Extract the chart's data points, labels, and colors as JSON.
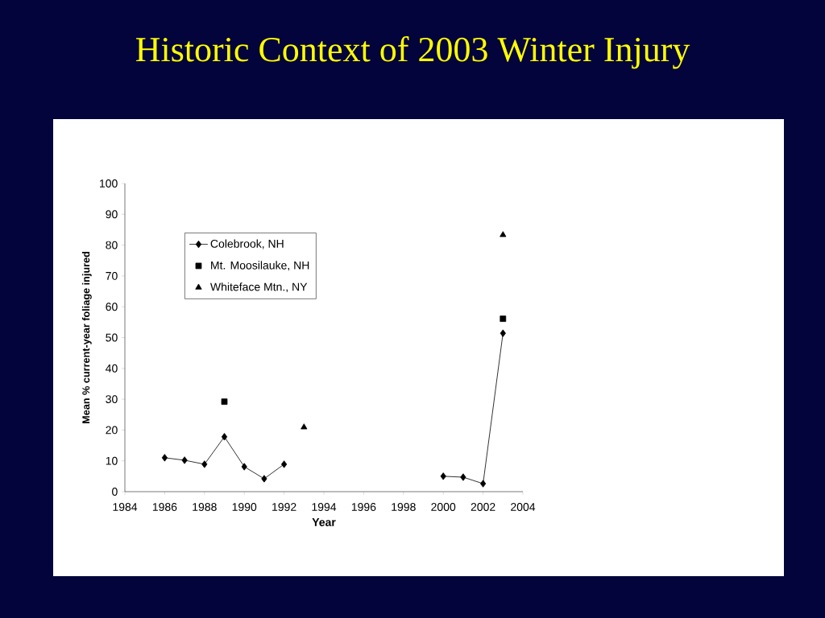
{
  "chart_data": {
    "type": "line",
    "title": "Historic Context of 2003 Winter Injury",
    "xlabel": "Year",
    "ylabel": "Mean % current-year foliage injured",
    "xlim": [
      1984,
      2004
    ],
    "xticks": [
      1984,
      1986,
      1988,
      1990,
      1992,
      1994,
      1996,
      1998,
      2000,
      2002,
      2004
    ],
    "ylim": [
      0,
      100
    ],
    "yticks": [
      0,
      10,
      20,
      30,
      40,
      50,
      60,
      70,
      80,
      90,
      100
    ],
    "grid": false,
    "legend": "top left",
    "series": [
      {
        "name": "Colebrook, NH",
        "marker": "diamond",
        "color": "#000000",
        "x": [
          1986,
          1987,
          1988,
          1989,
          1990,
          1991,
          1992,
          1993,
          2000,
          2001,
          2002,
          2003
        ],
        "values": [
          11.0,
          10.2,
          8.9,
          17.8,
          8.1,
          4.2,
          8.9,
          null,
          5.0,
          4.7,
          2.6,
          51.4
        ]
      },
      {
        "name": "Mt. Moosilauke, NH",
        "type": "scatter",
        "marker": "square",
        "color": "#000000",
        "x": [
          1989,
          2003
        ],
        "values": [
          29.2,
          56.1
        ]
      },
      {
        "name": "Whiteface Mtn., NY",
        "type": "scatter",
        "marker": "triangle",
        "color": "#000000",
        "x": [
          1993,
          2003
        ],
        "values": [
          20.9,
          83.3
        ]
      }
    ]
  }
}
